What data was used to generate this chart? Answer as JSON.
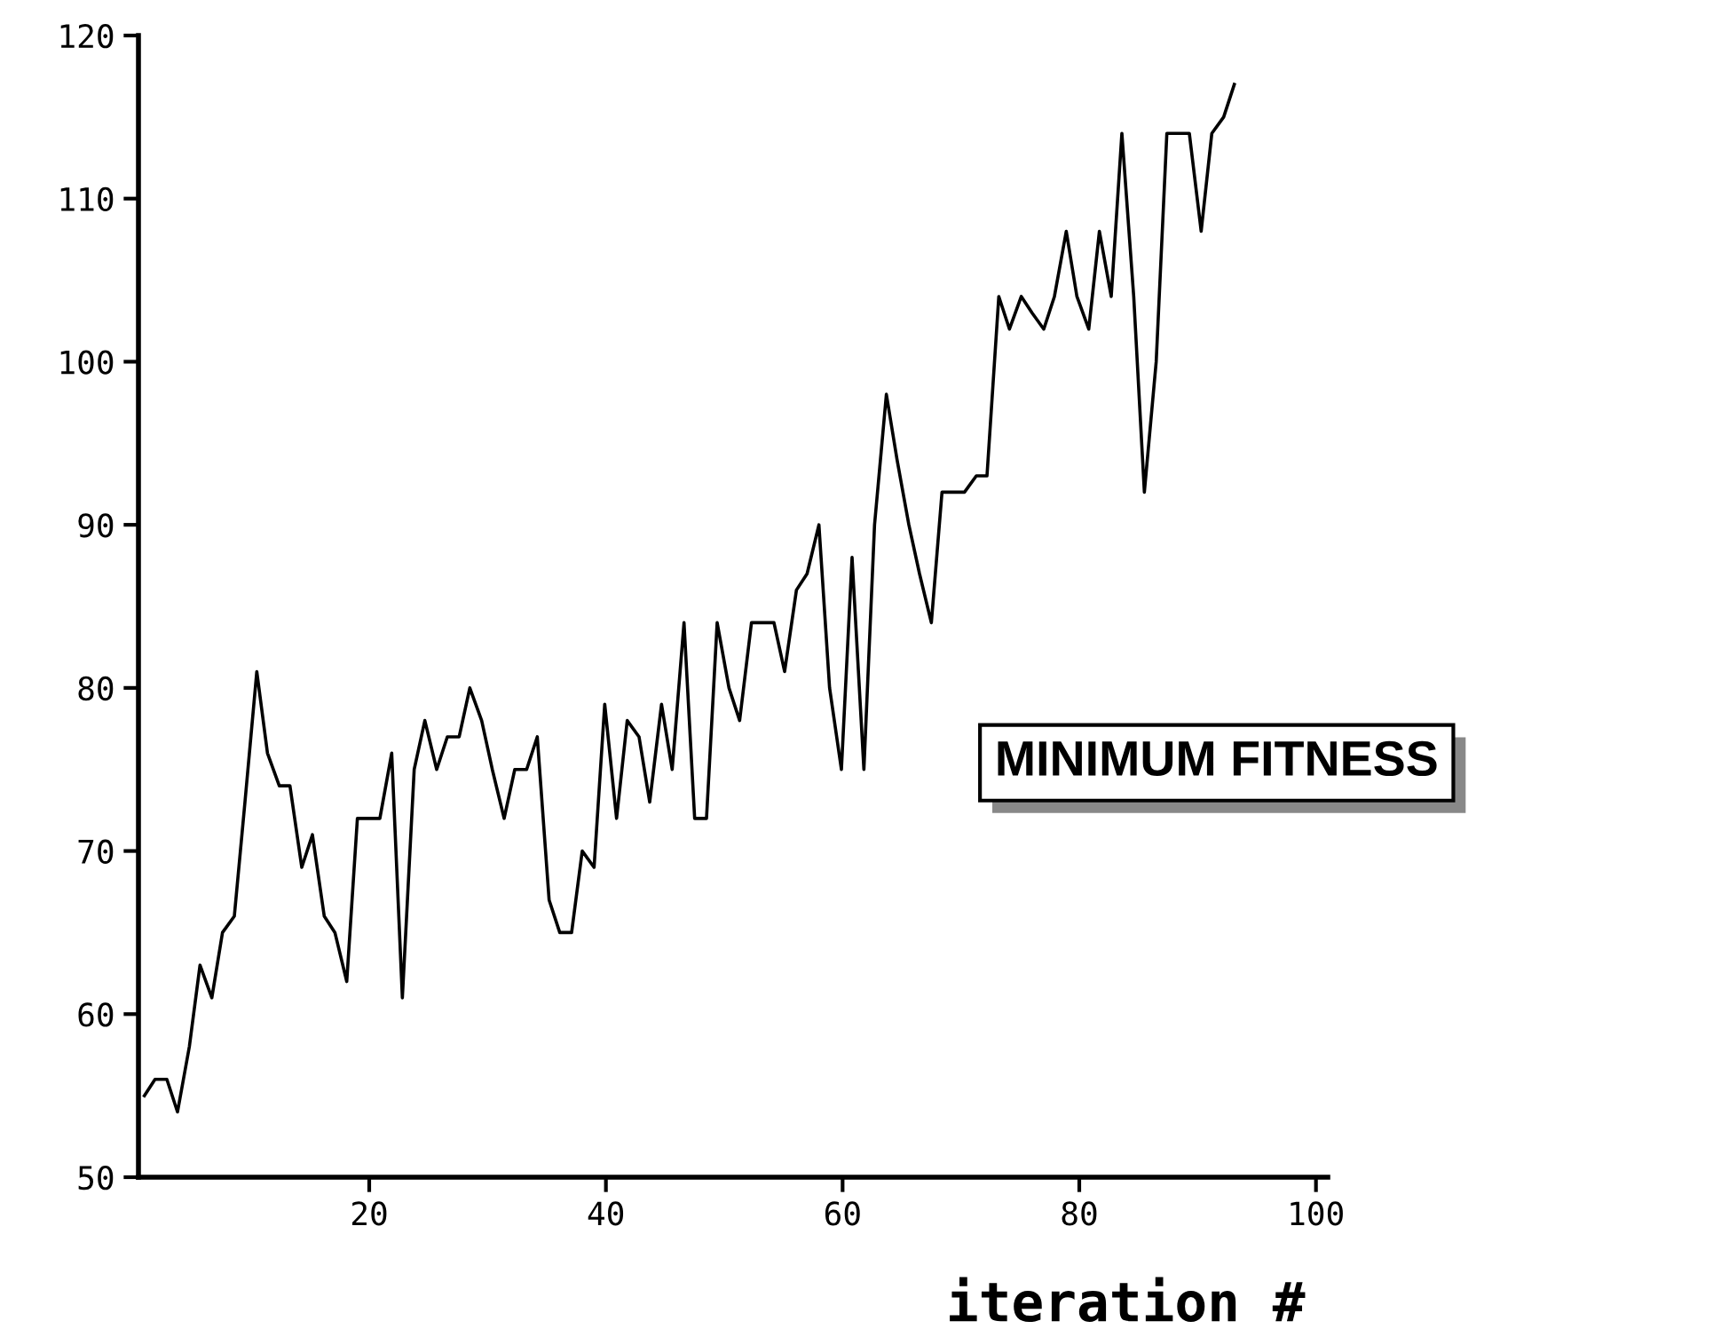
{
  "chart_data": {
    "type": "line",
    "xlabel": "iteration #",
    "annotations": [
      "MINIMUM FITNESS"
    ],
    "x": [
      1.0,
      1.9,
      2.9,
      3.8,
      4.8,
      5.7,
      6.7,
      7.6,
      8.6,
      9.5,
      10.5,
      11.4,
      12.4,
      13.3,
      14.3,
      15.2,
      16.2,
      17.1,
      18.1,
      19.0,
      20.0,
      20.9,
      21.9,
      22.8,
      23.8,
      24.7,
      25.7,
      26.6,
      27.6,
      28.5,
      29.5,
      30.4,
      31.4,
      32.3,
      33.3,
      34.2,
      35.2,
      36.1,
      37.1,
      38.0,
      39.0,
      39.9,
      40.9,
      41.8,
      42.8,
      43.7,
      44.7,
      45.6,
      46.6,
      47.5,
      48.5,
      49.4,
      50.4,
      51.3,
      52.3,
      53.2,
      54.2,
      55.1,
      56.1,
      57.0,
      58.0,
      58.9,
      59.9,
      60.8,
      61.8,
      62.7,
      63.7,
      64.6,
      65.6,
      66.5,
      67.5,
      68.4,
      69.4,
      70.3,
      71.3,
      72.2,
      73.2,
      74.1,
      75.1,
      76.0,
      77.0,
      77.9,
      78.9,
      79.8,
      80.8,
      81.7,
      82.7,
      83.6,
      84.6,
      85.5,
      86.5,
      87.4,
      88.4,
      89.3,
      90.3,
      91.2,
      92.2,
      93.1
    ],
    "series": [
      {
        "color": "#000000",
        "values": [
          55,
          56,
          56,
          54,
          58,
          63,
          61,
          65,
          66,
          73,
          81,
          76,
          74,
          74,
          69,
          71,
          66,
          65,
          62,
          72,
          72,
          72,
          76,
          61,
          75,
          78,
          75,
          77,
          77,
          80,
          78,
          75,
          72,
          75,
          75,
          77,
          67,
          65,
          65,
          70,
          69,
          79,
          72,
          78,
          77,
          73,
          79,
          75,
          84,
          72,
          72,
          84,
          80,
          78,
          84,
          84,
          84,
          81,
          86,
          87,
          90,
          80,
          75,
          88,
          75,
          90,
          98,
          94,
          90,
          87,
          84,
          92,
          92,
          92,
          93,
          93,
          104,
          102,
          104,
          103,
          102,
          104,
          108,
          104,
          102,
          108,
          104,
          114,
          104,
          92,
          100,
          114,
          114,
          114,
          108,
          114,
          115,
          117
        ]
      }
    ],
    "xlim": [
      0.5,
      101
    ],
    "ylim": [
      50,
      120
    ],
    "xticks": [
      20,
      40,
      60,
      80,
      100
    ],
    "yticks": [
      50,
      60,
      70,
      80,
      90,
      100,
      110,
      120
    ],
    "grid": false,
    "legend": false,
    "marker": "none",
    "line_style": "solid"
  }
}
